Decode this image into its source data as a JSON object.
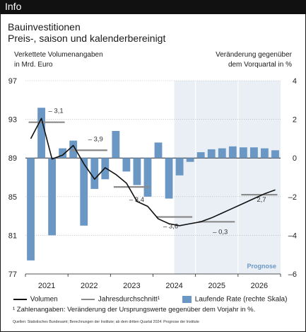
{
  "header": {
    "tag": "Info"
  },
  "chart_data": {
    "type": "bar+line",
    "title": "Bauinvestitionen",
    "subtitle": "Preis-, saison und kalenderbereinigt",
    "ylabel_left": [
      "Verkettete Volumenangaben",
      "in Mrd. Euro"
    ],
    "ylabel_right": [
      "Veränderung gegenüber",
      "dem Vorquartal in %"
    ],
    "ylim_left": [
      77,
      97
    ],
    "yticks_left": [
      "97",
      "93",
      "89",
      "85",
      "81",
      "77"
    ],
    "ylim_right": [
      -6,
      4
    ],
    "yticks_right": [
      "4",
      "2",
      "0",
      "-2",
      "-4",
      "-6"
    ],
    "years": [
      "2021",
      "2022",
      "2023",
      "2024",
      "2025",
      "2026"
    ],
    "quarters": [
      "2021Q1",
      "2021Q2",
      "2021Q3",
      "2021Q4",
      "2022Q1",
      "2022Q2",
      "2022Q3",
      "2022Q4",
      "2023Q1",
      "2023Q2",
      "2023Q3",
      "2023Q4",
      "2024Q1",
      "2024Q2",
      "2024Q3",
      "2024Q4",
      "2025Q1",
      "2025Q2",
      "2025Q3",
      "2025Q4",
      "2026Q1",
      "2026Q2",
      "2026Q3",
      "2026Q4"
    ],
    "forecast_start": "2024Q3",
    "forecast_label": "Prognose",
    "series": [
      {
        "name": "Volumen",
        "axis": "left",
        "type": "line",
        "values": [
          91.0,
          93.1,
          88.9,
          89.3,
          90.3,
          88.4,
          86.8,
          88.0,
          87.3,
          86.4,
          84.5,
          84.0,
          82.7,
          82.2,
          82.0,
          82.2,
          82.4,
          82.8,
          83.3,
          83.8,
          84.3,
          84.8,
          85.3,
          85.7
        ]
      },
      {
        "name": "Laufende Rate (rechte Skala)",
        "axis": "right",
        "type": "bar",
        "values": [
          -5.3,
          2.6,
          -4.0,
          0.5,
          0.9,
          -3.5,
          -1.6,
          -1.1,
          1.4,
          -0.7,
          -1.4,
          -2.0,
          0.8,
          -2.1,
          -0.9,
          -0.2,
          0.3,
          0.45,
          0.5,
          0.6,
          0.55,
          0.55,
          0.5,
          0.4
        ]
      },
      {
        "name": "Jahresdurchschnitt¹",
        "axis": "left",
        "type": "step",
        "values": [
          92.7,
          89.8,
          86.0,
          82.9,
          82.4,
          85.2
        ],
        "labels": [
          "– 3,1",
          "– 3,9",
          "– 3,4",
          "– 3,6",
          "– 0,3",
          "2,7"
        ]
      }
    ]
  },
  "legend": {
    "line": "Volumen",
    "avg": "Jahresdurchschnitt¹",
    "bar": "Laufende Rate (rechte Skala)"
  },
  "footnote": "¹ Zahlenangaben: Veränderung der Ursprungswerte gegenüber dem Vorjahr in %.",
  "source": "Quellen: Statistisches Bundesamt; Berechnungen der Institute; ab dem dritten Quartal 2024: Prognose der Institute",
  "colors": {
    "bar": "#6b97c5",
    "line": "#111111",
    "avg": "#8a8a8a",
    "forecast_bg": "#e9eff5",
    "forecast_text": "#6b97c5",
    "grid": "#b0b0b0"
  }
}
